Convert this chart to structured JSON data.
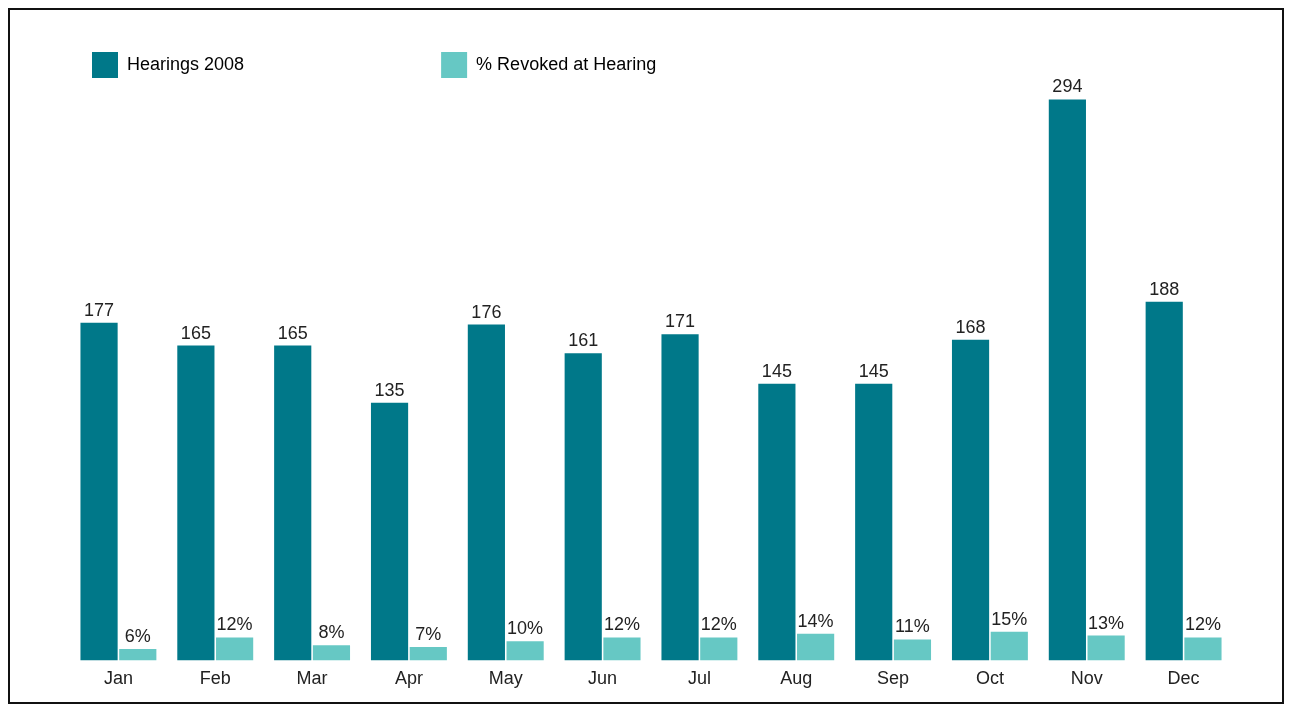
{
  "chart_data": {
    "type": "bar",
    "categories": [
      "Jan",
      "Feb",
      "Mar",
      "Apr",
      "May",
      "Jun",
      "Jul",
      "Aug",
      "Sep",
      "Oct",
      "Nov",
      "Dec"
    ],
    "series": [
      {
        "name": "Hearings 2008",
        "color": "#007889",
        "values": [
          177,
          165,
          165,
          135,
          176,
          161,
          171,
          145,
          145,
          168,
          294,
          188
        ],
        "value_labels": [
          "177",
          "165",
          "165",
          "135",
          "176",
          "161",
          "171",
          "145",
          "145",
          "168",
          "294",
          "188"
        ]
      },
      {
        "name": "% Revoked at Hearing",
        "color": "#66c8c4",
        "values": [
          6,
          12,
          8,
          7,
          10,
          12,
          12,
          14,
          11,
          15,
          13,
          12
        ],
        "value_labels": [
          "6%",
          "12%",
          "8%",
          "7%",
          "10%",
          "12%",
          "12%",
          "14%",
          "11%",
          "15%",
          "13%",
          "12%"
        ]
      }
    ],
    "legend": "top left",
    "grid": false,
    "tick_labels": "x"
  }
}
